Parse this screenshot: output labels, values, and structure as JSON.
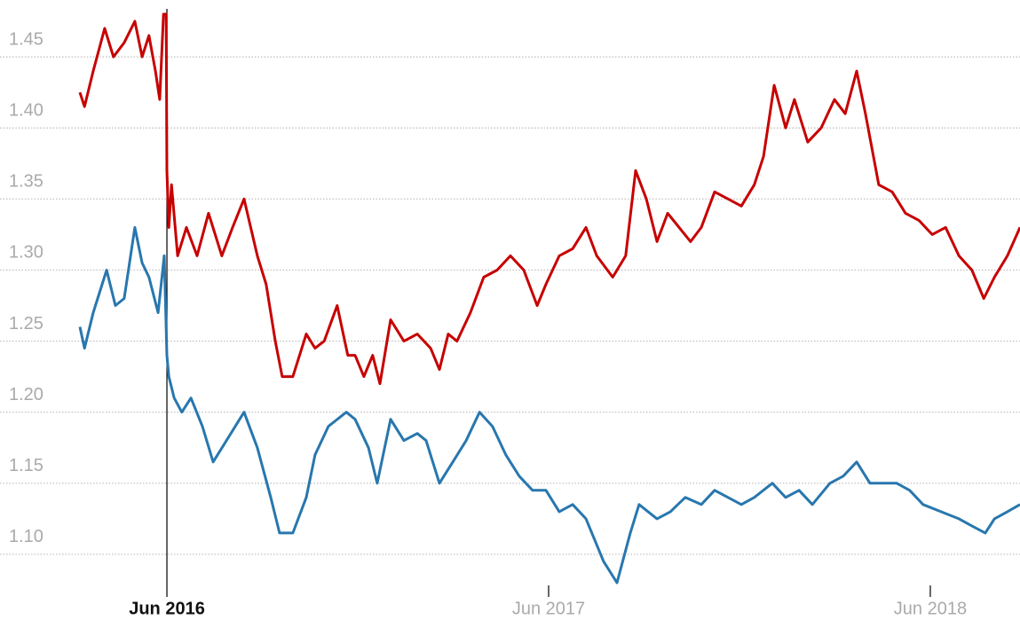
{
  "chart_data": {
    "type": "line",
    "xlim": [
      2016.23,
      2018.693
    ],
    "xticks": [
      {
        "value": 2016.458,
        "label": "Jun 2016"
      },
      {
        "value": 2017.458,
        "label": "Jun 2017"
      },
      {
        "value": 2018.458,
        "label": "Jun 2018"
      }
    ],
    "highlight_xtick": 0,
    "ylim": [
      1.07,
      1.49
    ],
    "yticks": [
      {
        "value": 1.1,
        "label": "1.10"
      },
      1.15,
      {
        "value": 1.2,
        "label": "1.20"
      },
      1.25,
      {
        "value": 1.3,
        "label": "1.30"
      },
      1.35,
      {
        "value": 1.4,
        "label": "1.40"
      },
      1.45
    ],
    "grid": true,
    "series": [
      {
        "color": "#c70000",
        "x": [
          2016.23,
          2016.242,
          2016.265,
          2016.295,
          2016.318,
          2016.346,
          2016.374,
          2016.393,
          2016.411,
          2016.428,
          2016.439,
          2016.449,
          2016.456,
          2016.458,
          2016.463,
          2016.47,
          2016.486,
          2016.509,
          2016.537,
          2016.567,
          2016.602,
          2016.63,
          2016.66,
          2016.695,
          2016.718,
          2016.742,
          2016.76,
          2016.788,
          2016.823,
          2016.846,
          2016.87,
          2016.904,
          2016.932,
          2016.951,
          2016.974,
          2016.997,
          2017.016,
          2017.044,
          2017.079,
          2017.114,
          2017.149,
          2017.172,
          2017.195,
          2017.218,
          2017.253,
          2017.288,
          2017.323,
          2017.358,
          2017.393,
          2017.428,
          2017.451,
          2017.486,
          2017.521,
          2017.556,
          2017.584,
          2017.626,
          2017.66,
          2017.686,
          2017.714,
          2017.742,
          2017.77,
          2017.8,
          2017.83,
          2017.858,
          2017.893,
          2017.928,
          2017.963,
          2017.997,
          2018.021,
          2018.049,
          2018.079,
          2018.102,
          2018.137,
          2018.172,
          2018.207,
          2018.235,
          2018.265,
          2018.288,
          2018.323,
          2018.358,
          2018.393,
          2018.428,
          2018.463,
          2018.498,
          2018.533,
          2018.567,
          2018.598,
          2018.626,
          2018.66,
          2018.693
        ],
        "values": [
          1.425,
          1.415,
          1.44,
          1.47,
          1.45,
          1.46,
          1.475,
          1.45,
          1.465,
          1.44,
          1.42,
          1.48,
          1.48,
          1.37,
          1.33,
          1.36,
          1.31,
          1.33,
          1.31,
          1.34,
          1.31,
          1.33,
          1.35,
          1.31,
          1.29,
          1.25,
          1.225,
          1.225,
          1.255,
          1.245,
          1.25,
          1.275,
          1.24,
          1.24,
          1.225,
          1.24,
          1.22,
          1.265,
          1.25,
          1.255,
          1.245,
          1.23,
          1.255,
          1.25,
          1.27,
          1.295,
          1.3,
          1.31,
          1.3,
          1.275,
          1.29,
          1.31,
          1.315,
          1.33,
          1.31,
          1.295,
          1.31,
          1.37,
          1.35,
          1.32,
          1.34,
          1.33,
          1.32,
          1.33,
          1.355,
          1.35,
          1.345,
          1.36,
          1.38,
          1.43,
          1.4,
          1.42,
          1.39,
          1.4,
          1.42,
          1.41,
          1.44,
          1.41,
          1.36,
          1.355,
          1.34,
          1.335,
          1.325,
          1.33,
          1.31,
          1.3,
          1.28,
          1.295,
          1.31,
          1.33
        ]
      },
      {
        "color": "#2877ae",
        "x": [
          2016.23,
          2016.242,
          2016.265,
          2016.3,
          2016.323,
          2016.346,
          2016.374,
          2016.393,
          2016.411,
          2016.435,
          2016.451,
          2016.458,
          2016.463,
          2016.477,
          2016.497,
          2016.521,
          2016.551,
          2016.579,
          2016.614,
          2016.66,
          2016.695,
          2016.73,
          2016.753,
          2016.788,
          2016.823,
          2016.846,
          2016.881,
          2016.928,
          2016.951,
          2016.986,
          2017.009,
          2017.044,
          2017.079,
          2017.114,
          2017.137,
          2017.172,
          2017.207,
          2017.242,
          2017.277,
          2017.311,
          2017.346,
          2017.381,
          2017.416,
          2017.451,
          2017.486,
          2017.521,
          2017.556,
          2017.602,
          2017.637,
          2017.672,
          2017.695,
          2017.742,
          2017.777,
          2017.816,
          2017.858,
          2017.893,
          2017.928,
          2017.963,
          2017.997,
          2018.044,
          2018.079,
          2018.114,
          2018.149,
          2018.195,
          2018.23,
          2018.265,
          2018.3,
          2018.335,
          2018.37,
          2018.404,
          2018.439,
          2018.486,
          2018.533,
          2018.567,
          2018.602,
          2018.626,
          2018.66,
          2018.693
        ],
        "values": [
          1.26,
          1.245,
          1.27,
          1.3,
          1.275,
          1.28,
          1.33,
          1.305,
          1.295,
          1.27,
          1.31,
          1.24,
          1.225,
          1.21,
          1.2,
          1.21,
          1.19,
          1.165,
          1.18,
          1.2,
          1.175,
          1.14,
          1.115,
          1.115,
          1.14,
          1.17,
          1.19,
          1.2,
          1.195,
          1.175,
          1.15,
          1.195,
          1.18,
          1.185,
          1.18,
          1.15,
          1.165,
          1.18,
          1.2,
          1.19,
          1.17,
          1.155,
          1.145,
          1.145,
          1.13,
          1.135,
          1.125,
          1.095,
          1.08,
          1.115,
          1.135,
          1.125,
          1.13,
          1.14,
          1.135,
          1.145,
          1.14,
          1.135,
          1.14,
          1.15,
          1.14,
          1.145,
          1.135,
          1.15,
          1.155,
          1.165,
          1.15,
          1.15,
          1.15,
          1.145,
          1.135,
          1.13,
          1.125,
          1.12,
          1.115,
          1.125,
          1.13,
          1.135
        ]
      }
    ]
  }
}
